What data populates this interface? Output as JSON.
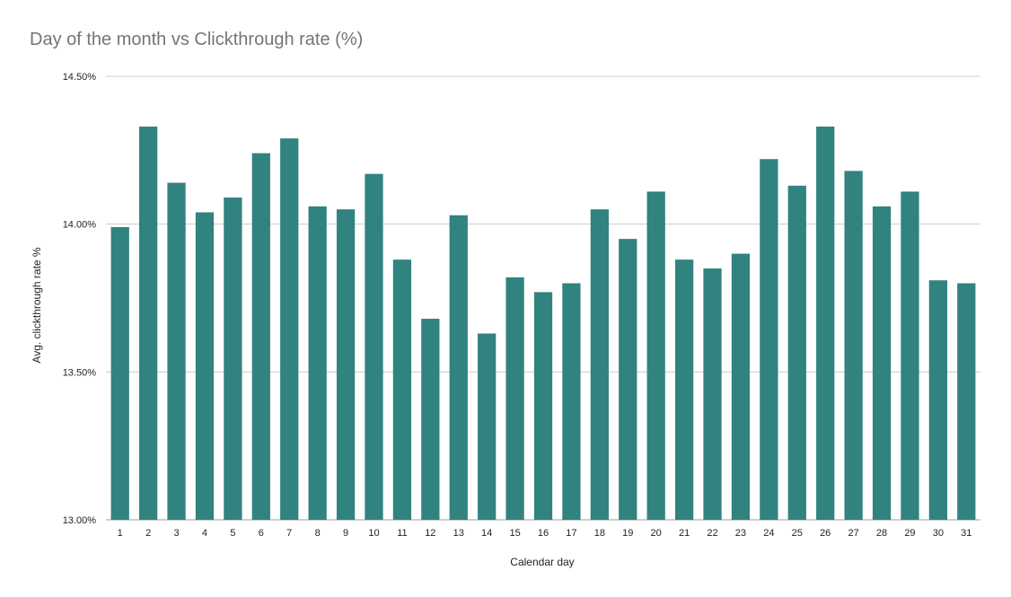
{
  "chart_data": {
    "type": "bar",
    "title": "Day of the month vs Clickthrough rate (%)",
    "xlabel": "Calendar day",
    "ylabel": "Avg. clickthrough rate %",
    "categories": [
      "1",
      "2",
      "3",
      "4",
      "5",
      "6",
      "7",
      "8",
      "9",
      "10",
      "11",
      "12",
      "13",
      "14",
      "15",
      "16",
      "17",
      "18",
      "19",
      "20",
      "21",
      "22",
      "23",
      "24",
      "25",
      "26",
      "27",
      "28",
      "29",
      "30",
      "31"
    ],
    "values": [
      13.99,
      14.33,
      14.14,
      14.04,
      14.09,
      14.24,
      14.29,
      14.06,
      14.05,
      14.17,
      13.88,
      13.68,
      14.03,
      13.63,
      13.82,
      13.77,
      13.8,
      14.05,
      13.95,
      14.11,
      13.88,
      13.85,
      13.9,
      14.22,
      14.13,
      14.33,
      14.18,
      14.06,
      14.11,
      13.81,
      13.8
    ],
    "ylim": [
      13.0,
      14.5
    ],
    "yticks": [
      13.0,
      13.5,
      14.0,
      14.5
    ],
    "ytick_labels": [
      "13.00%",
      "13.50%",
      "14.00%",
      "14.50%"
    ],
    "bar_color": "#31837f",
    "grid": true
  }
}
